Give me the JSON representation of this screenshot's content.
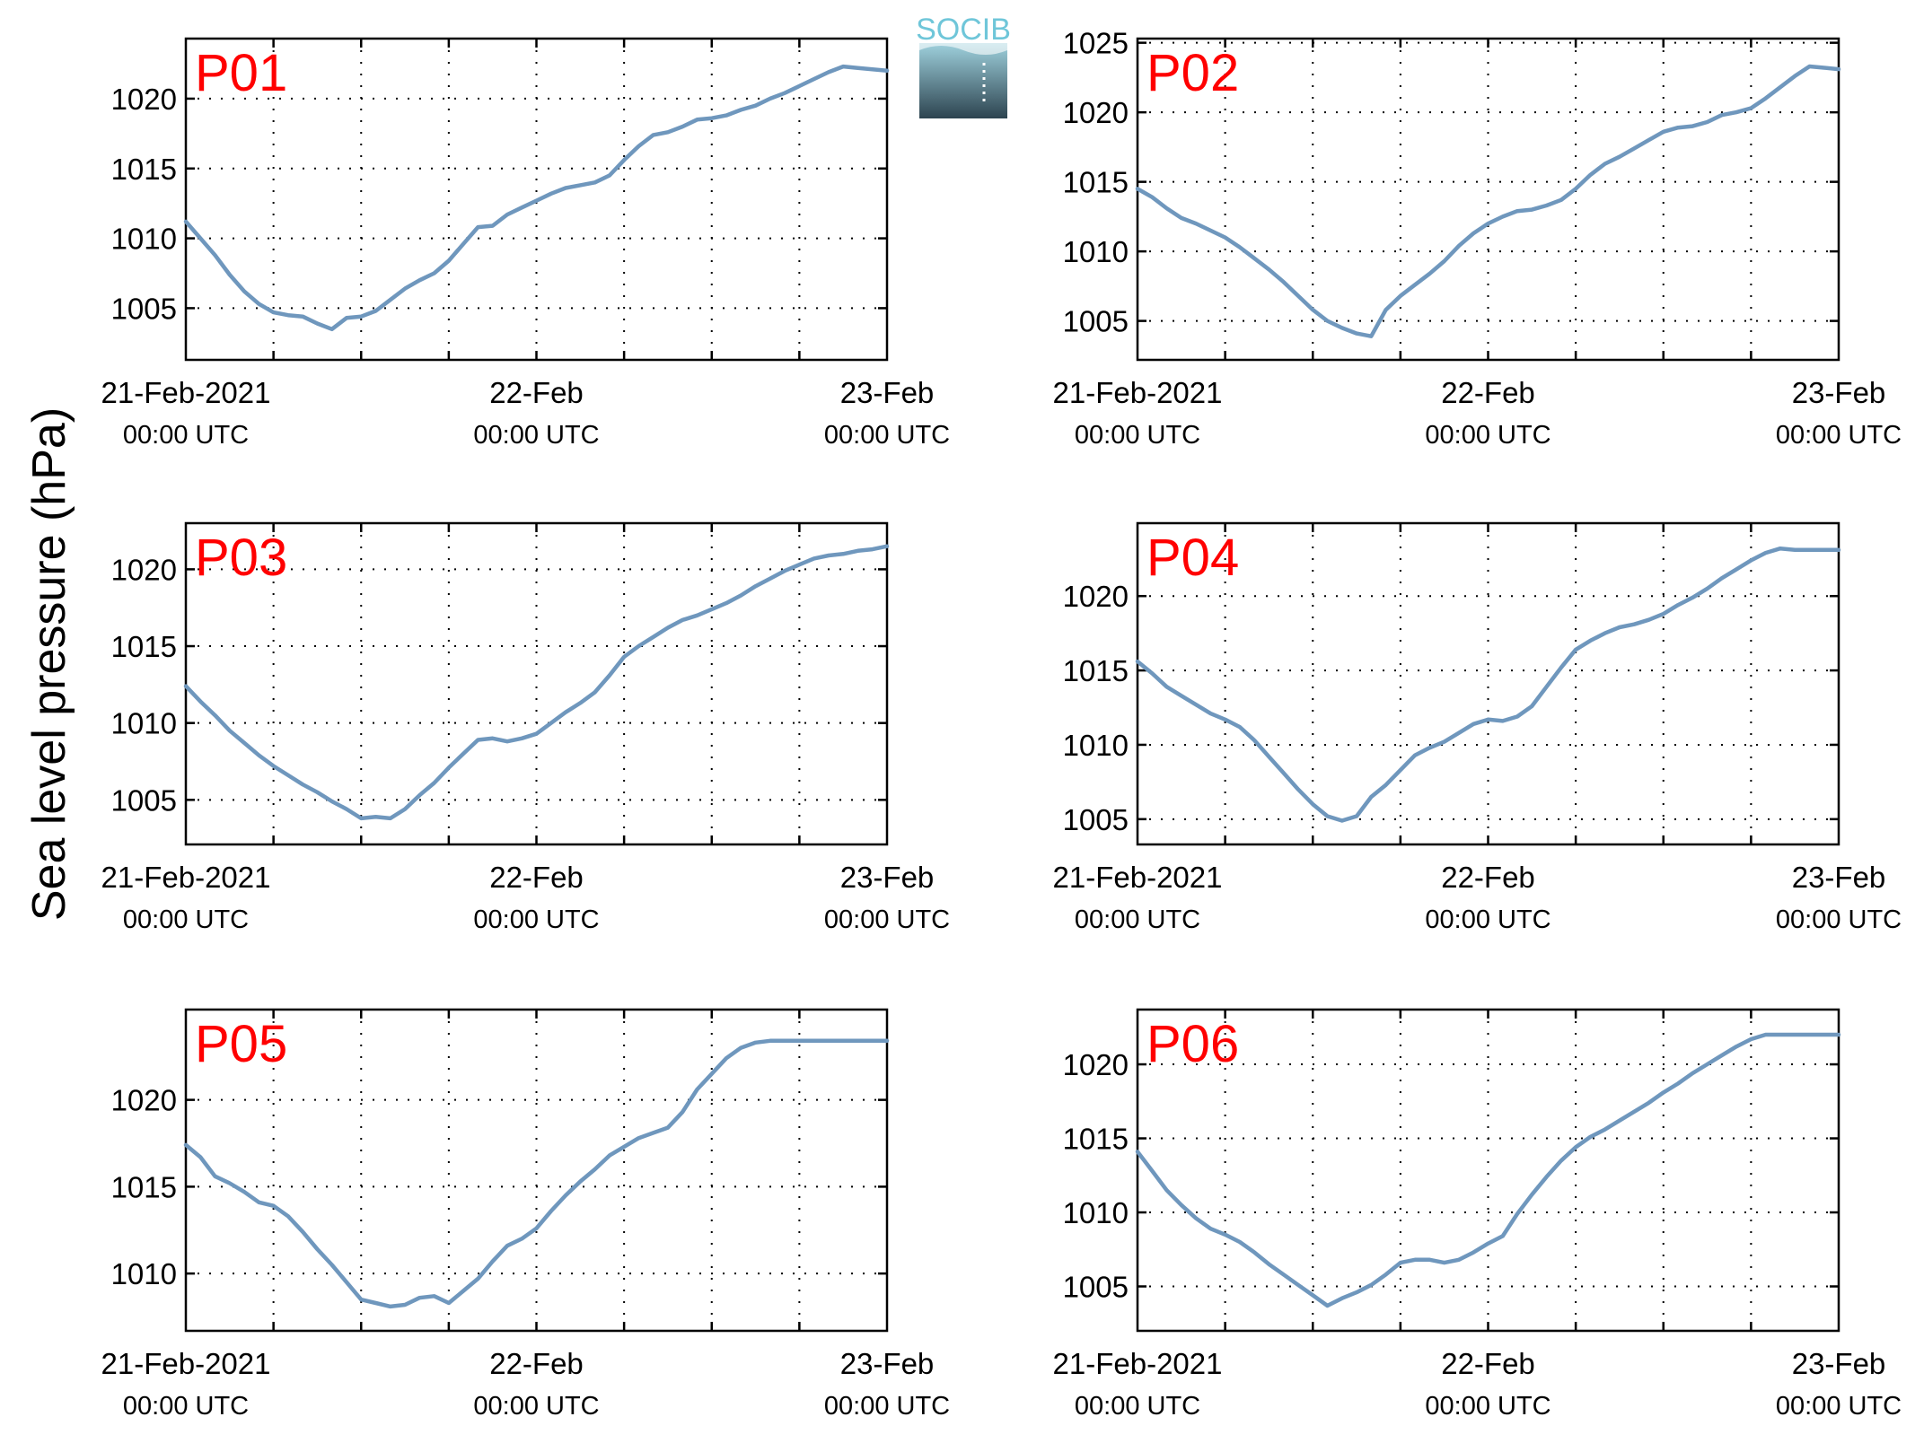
{
  "figure": {
    "ylabel": "Sea level pressure (hPa)",
    "line_color": "#6f97bd",
    "label_color": "#ff0000",
    "logo": {
      "text": "SOCIB",
      "text_color": "#6fc6d9",
      "top_color": "#9fd1dd",
      "bottom_color": "#2d4450"
    }
  },
  "chart_data": [
    {
      "type": "line",
      "title": "P01",
      "x_ticks": [
        {
          "date": "21-Feb-2021",
          "time": "00:00 UTC"
        },
        {
          "date": "22-Feb",
          "time": "00:00 UTC"
        },
        {
          "date": "23-Feb",
          "time": "00:00 UTC"
        }
      ],
      "xlim": [
        0,
        48
      ],
      "ylim": [
        1001.3,
        1024.3
      ],
      "yticks": [
        1005,
        1010,
        1015,
        1020
      ],
      "grid": true,
      "series": [
        {
          "x": [
            0,
            1,
            2,
            3,
            4,
            5,
            6,
            7,
            8,
            9,
            10,
            11,
            12,
            13,
            14,
            15,
            16,
            17,
            18,
            19,
            20,
            21,
            22,
            23,
            24,
            25,
            26,
            27,
            28,
            29,
            30,
            31,
            32,
            33,
            34,
            35,
            36,
            37,
            38,
            39,
            40,
            41,
            42,
            43,
            44,
            45,
            46,
            47,
            48
          ],
          "y": [
            1011.2,
            1010.0,
            1008.8,
            1007.4,
            1006.2,
            1005.3,
            1004.7,
            1004.5,
            1004.4,
            1003.9,
            1003.5,
            1004.3,
            1004.4,
            1004.8,
            1005.6,
            1006.4,
            1007.0,
            1007.5,
            1008.4,
            1009.6,
            1010.8,
            1010.9,
            1011.7,
            1012.2,
            1012.7,
            1013.2,
            1013.6,
            1013.8,
            1014.0,
            1014.5,
            1015.6,
            1016.6,
            1017.4,
            1017.6,
            1018.0,
            1018.5,
            1018.6,
            1018.8,
            1019.2,
            1019.5,
            1020.0,
            1020.4,
            1020.9,
            1021.4,
            1021.9,
            1022.3,
            1022.2,
            1022.1,
            1022.0
          ]
        }
      ]
    },
    {
      "type": "line",
      "title": "P02",
      "x_ticks": [
        {
          "date": "21-Feb-2021",
          "time": "00:00 UTC"
        },
        {
          "date": "22-Feb",
          "time": "00:00 UTC"
        },
        {
          "date": "23-Feb",
          "time": "00:00 UTC"
        }
      ],
      "xlim": [
        0,
        48
      ],
      "ylim": [
        1002.2,
        1025.3
      ],
      "yticks": [
        1005,
        1010,
        1015,
        1020,
        1025
      ],
      "grid": true,
      "series": [
        {
          "x": [
            0,
            1,
            2,
            3,
            4,
            5,
            6,
            7,
            8,
            9,
            10,
            11,
            12,
            13,
            14,
            15,
            16,
            17,
            18,
            19,
            20,
            21,
            22,
            23,
            24,
            25,
            26,
            27,
            28,
            29,
            30,
            31,
            32,
            33,
            34,
            35,
            36,
            37,
            38,
            39,
            40,
            41,
            42,
            43,
            44,
            45,
            46,
            47,
            48
          ],
          "y": [
            1014.5,
            1013.9,
            1013.1,
            1012.4,
            1012.0,
            1011.5,
            1011.0,
            1010.3,
            1009.5,
            1008.7,
            1007.8,
            1006.8,
            1005.8,
            1005.0,
            1004.5,
            1004.1,
            1003.9,
            1005.8,
            1006.8,
            1007.6,
            1008.4,
            1009.3,
            1010.4,
            1011.3,
            1012.0,
            1012.5,
            1012.9,
            1013.0,
            1013.3,
            1013.7,
            1014.5,
            1015.5,
            1016.3,
            1016.8,
            1017.4,
            1018.0,
            1018.6,
            1018.9,
            1019.0,
            1019.3,
            1019.8,
            1020.0,
            1020.3,
            1021.0,
            1021.8,
            1022.6,
            1023.3,
            1023.2,
            1023.1
          ]
        }
      ]
    },
    {
      "type": "line",
      "title": "P03",
      "x_ticks": [
        {
          "date": "21-Feb-2021",
          "time": "00:00 UTC"
        },
        {
          "date": "22-Feb",
          "time": "00:00 UTC"
        },
        {
          "date": "23-Feb",
          "time": "00:00 UTC"
        }
      ],
      "xlim": [
        0,
        48
      ],
      "ylim": [
        1002.1,
        1023.0
      ],
      "yticks": [
        1005,
        1010,
        1015,
        1020
      ],
      "grid": true,
      "series": [
        {
          "x": [
            0,
            1,
            2,
            3,
            4,
            5,
            6,
            7,
            8,
            9,
            10,
            11,
            12,
            13,
            14,
            15,
            16,
            17,
            18,
            19,
            20,
            21,
            22,
            23,
            24,
            25,
            26,
            27,
            28,
            29,
            30,
            31,
            32,
            33,
            34,
            35,
            36,
            37,
            38,
            39,
            40,
            41,
            42,
            43,
            44,
            45,
            46,
            47,
            48
          ],
          "y": [
            1012.4,
            1011.4,
            1010.5,
            1009.5,
            1008.7,
            1007.9,
            1007.2,
            1006.6,
            1006.0,
            1005.5,
            1004.9,
            1004.4,
            1003.8,
            1003.9,
            1003.8,
            1004.4,
            1005.3,
            1006.1,
            1007.1,
            1008.0,
            1008.9,
            1009.0,
            1008.8,
            1009.0,
            1009.3,
            1010.0,
            1010.7,
            1011.3,
            1012.0,
            1013.1,
            1014.3,
            1015.0,
            1015.6,
            1016.2,
            1016.7,
            1017.0,
            1017.4,
            1017.8,
            1018.3,
            1018.9,
            1019.4,
            1019.9,
            1020.3,
            1020.7,
            1020.9,
            1021.0,
            1021.2,
            1021.3,
            1021.5
          ]
        }
      ]
    },
    {
      "type": "line",
      "title": "P04",
      "x_ticks": [
        {
          "date": "21-Feb-2021",
          "time": "00:00 UTC"
        },
        {
          "date": "22-Feb",
          "time": "00:00 UTC"
        },
        {
          "date": "23-Feb",
          "time": "00:00 UTC"
        }
      ],
      "xlim": [
        0,
        48
      ],
      "ylim": [
        1003.3,
        1024.9
      ],
      "yticks": [
        1005,
        1010,
        1015,
        1020
      ],
      "grid": true,
      "series": [
        {
          "x": [
            0,
            1,
            2,
            3,
            4,
            5,
            6,
            7,
            8,
            9,
            10,
            11,
            12,
            13,
            14,
            15,
            16,
            17,
            18,
            19,
            20,
            21,
            22,
            23,
            24,
            25,
            26,
            27,
            28,
            29,
            30,
            31,
            32,
            33,
            34,
            35,
            36,
            37,
            38,
            39,
            40,
            41,
            42,
            43,
            44,
            45,
            46,
            47,
            48
          ],
          "y": [
            1015.6,
            1014.8,
            1013.9,
            1013.3,
            1012.7,
            1012.1,
            1011.7,
            1011.2,
            1010.3,
            1009.2,
            1008.1,
            1007.0,
            1006.0,
            1005.2,
            1004.9,
            1005.2,
            1006.5,
            1007.3,
            1008.3,
            1009.3,
            1009.8,
            1010.2,
            1010.8,
            1011.4,
            1011.7,
            1011.6,
            1011.9,
            1012.6,
            1013.9,
            1015.2,
            1016.4,
            1017.0,
            1017.5,
            1017.9,
            1018.1,
            1018.4,
            1018.8,
            1019.4,
            1019.9,
            1020.5,
            1021.2,
            1021.8,
            1022.4,
            1022.9,
            1023.2,
            1023.1,
            1023.1,
            1023.1,
            1023.1
          ]
        }
      ]
    },
    {
      "type": "line",
      "title": "P05",
      "x_ticks": [
        {
          "date": "21-Feb-2021",
          "time": "00:00 UTC"
        },
        {
          "date": "22-Feb",
          "time": "00:00 UTC"
        },
        {
          "date": "23-Feb",
          "time": "00:00 UTC"
        }
      ],
      "xlim": [
        0,
        48
      ],
      "ylim": [
        1006.7,
        1025.2
      ],
      "yticks": [
        1010,
        1015,
        1020
      ],
      "grid": true,
      "series": [
        {
          "x": [
            0,
            1,
            2,
            3,
            4,
            5,
            6,
            7,
            8,
            9,
            10,
            11,
            12,
            13,
            14,
            15,
            16,
            17,
            18,
            19,
            20,
            21,
            22,
            23,
            24,
            25,
            26,
            27,
            28,
            29,
            30,
            31,
            32,
            33,
            34,
            35,
            36,
            37,
            38,
            39,
            40,
            41,
            42,
            43,
            44,
            45,
            46,
            47,
            48
          ],
          "y": [
            1017.4,
            1016.7,
            1015.6,
            1015.2,
            1014.7,
            1014.1,
            1013.9,
            1013.3,
            1012.4,
            1011.4,
            1010.5,
            1009.5,
            1008.5,
            1008.3,
            1008.1,
            1008.2,
            1008.6,
            1008.7,
            1008.3,
            1009.0,
            1009.7,
            1010.7,
            1011.6,
            1012.0,
            1012.6,
            1013.6,
            1014.5,
            1015.3,
            1016.0,
            1016.8,
            1017.3,
            1017.8,
            1018.1,
            1018.4,
            1019.3,
            1020.6,
            1021.5,
            1022.4,
            1023.0,
            1023.3,
            1023.4,
            1023.4,
            1023.4,
            1023.4,
            1023.4,
            1023.4,
            1023.4,
            1023.4,
            1023.4
          ]
        }
      ]
    },
    {
      "type": "line",
      "title": "P06",
      "x_ticks": [
        {
          "date": "21-Feb-2021",
          "time": "00:00 UTC"
        },
        {
          "date": "22-Feb",
          "time": "00:00 UTC"
        },
        {
          "date": "23-Feb",
          "time": "00:00 UTC"
        }
      ],
      "xlim": [
        0,
        48
      ],
      "ylim": [
        1002.0,
        1023.7
      ],
      "yticks": [
        1005,
        1010,
        1015,
        1020
      ],
      "grid": true,
      "series": [
        {
          "x": [
            0,
            1,
            2,
            3,
            4,
            5,
            6,
            7,
            8,
            9,
            10,
            11,
            12,
            13,
            14,
            15,
            16,
            17,
            18,
            19,
            20,
            21,
            22,
            23,
            24,
            25,
            26,
            27,
            28,
            29,
            30,
            31,
            32,
            33,
            34,
            35,
            36,
            37,
            38,
            39,
            40,
            41,
            42,
            43,
            44,
            45,
            46,
            47,
            48
          ],
          "y": [
            1014.1,
            1012.8,
            1011.5,
            1010.5,
            1009.6,
            1008.9,
            1008.5,
            1008.0,
            1007.3,
            1006.5,
            1005.8,
            1005.1,
            1004.4,
            1003.7,
            1004.2,
            1004.6,
            1005.1,
            1005.8,
            1006.6,
            1006.8,
            1006.8,
            1006.6,
            1006.8,
            1007.3,
            1007.9,
            1008.4,
            1009.9,
            1011.2,
            1012.4,
            1013.5,
            1014.4,
            1015.1,
            1015.6,
            1016.2,
            1016.8,
            1017.4,
            1018.1,
            1018.7,
            1019.4,
            1020.0,
            1020.6,
            1021.2,
            1021.7,
            1022.0,
            1022.0,
            1022.0,
            1022.0,
            1022.0,
            1022.0
          ]
        }
      ]
    }
  ]
}
